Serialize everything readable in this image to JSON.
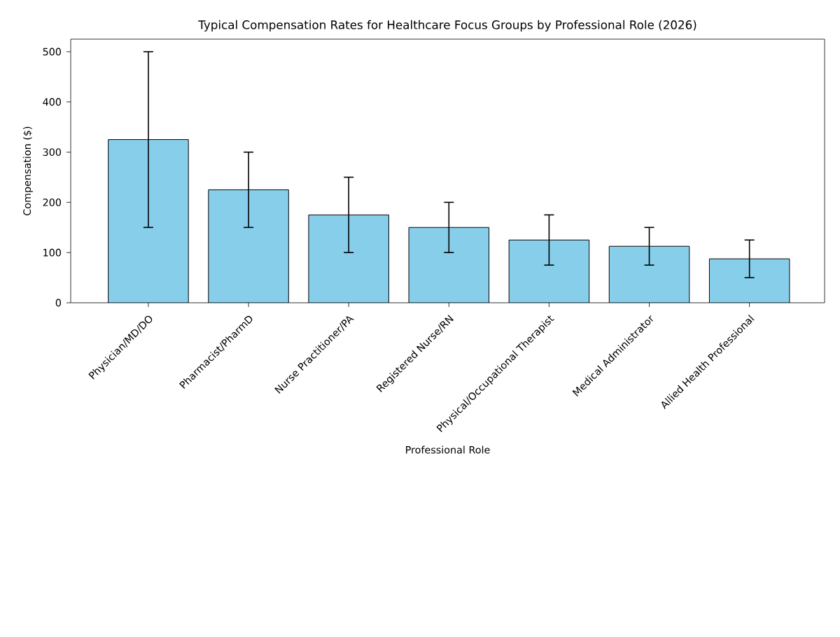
{
  "chart_data": {
    "type": "bar",
    "title": "Typical Compensation Rates for Healthcare Focus Groups by Professional Role (2026)",
    "xlabel": "Professional Role",
    "ylabel": "Compensation ($)",
    "categories": [
      "Physician/MD/DO",
      "Pharmacist/PharmD",
      "Nurse Practitioner/PA",
      "Registered Nurse/RN",
      "Physical/Occupational Therapist",
      "Medical Administrator",
      "Allied Health Professional"
    ],
    "values": [
      325,
      225,
      175,
      150,
      125,
      112.5,
      87.5
    ],
    "errors": [
      175,
      75,
      75,
      50,
      50,
      37.5,
      37.5
    ],
    "color": "#87ceeb",
    "ylim": [
      0,
      525
    ],
    "yticks": [
      0,
      100,
      200,
      300,
      400,
      500
    ]
  }
}
